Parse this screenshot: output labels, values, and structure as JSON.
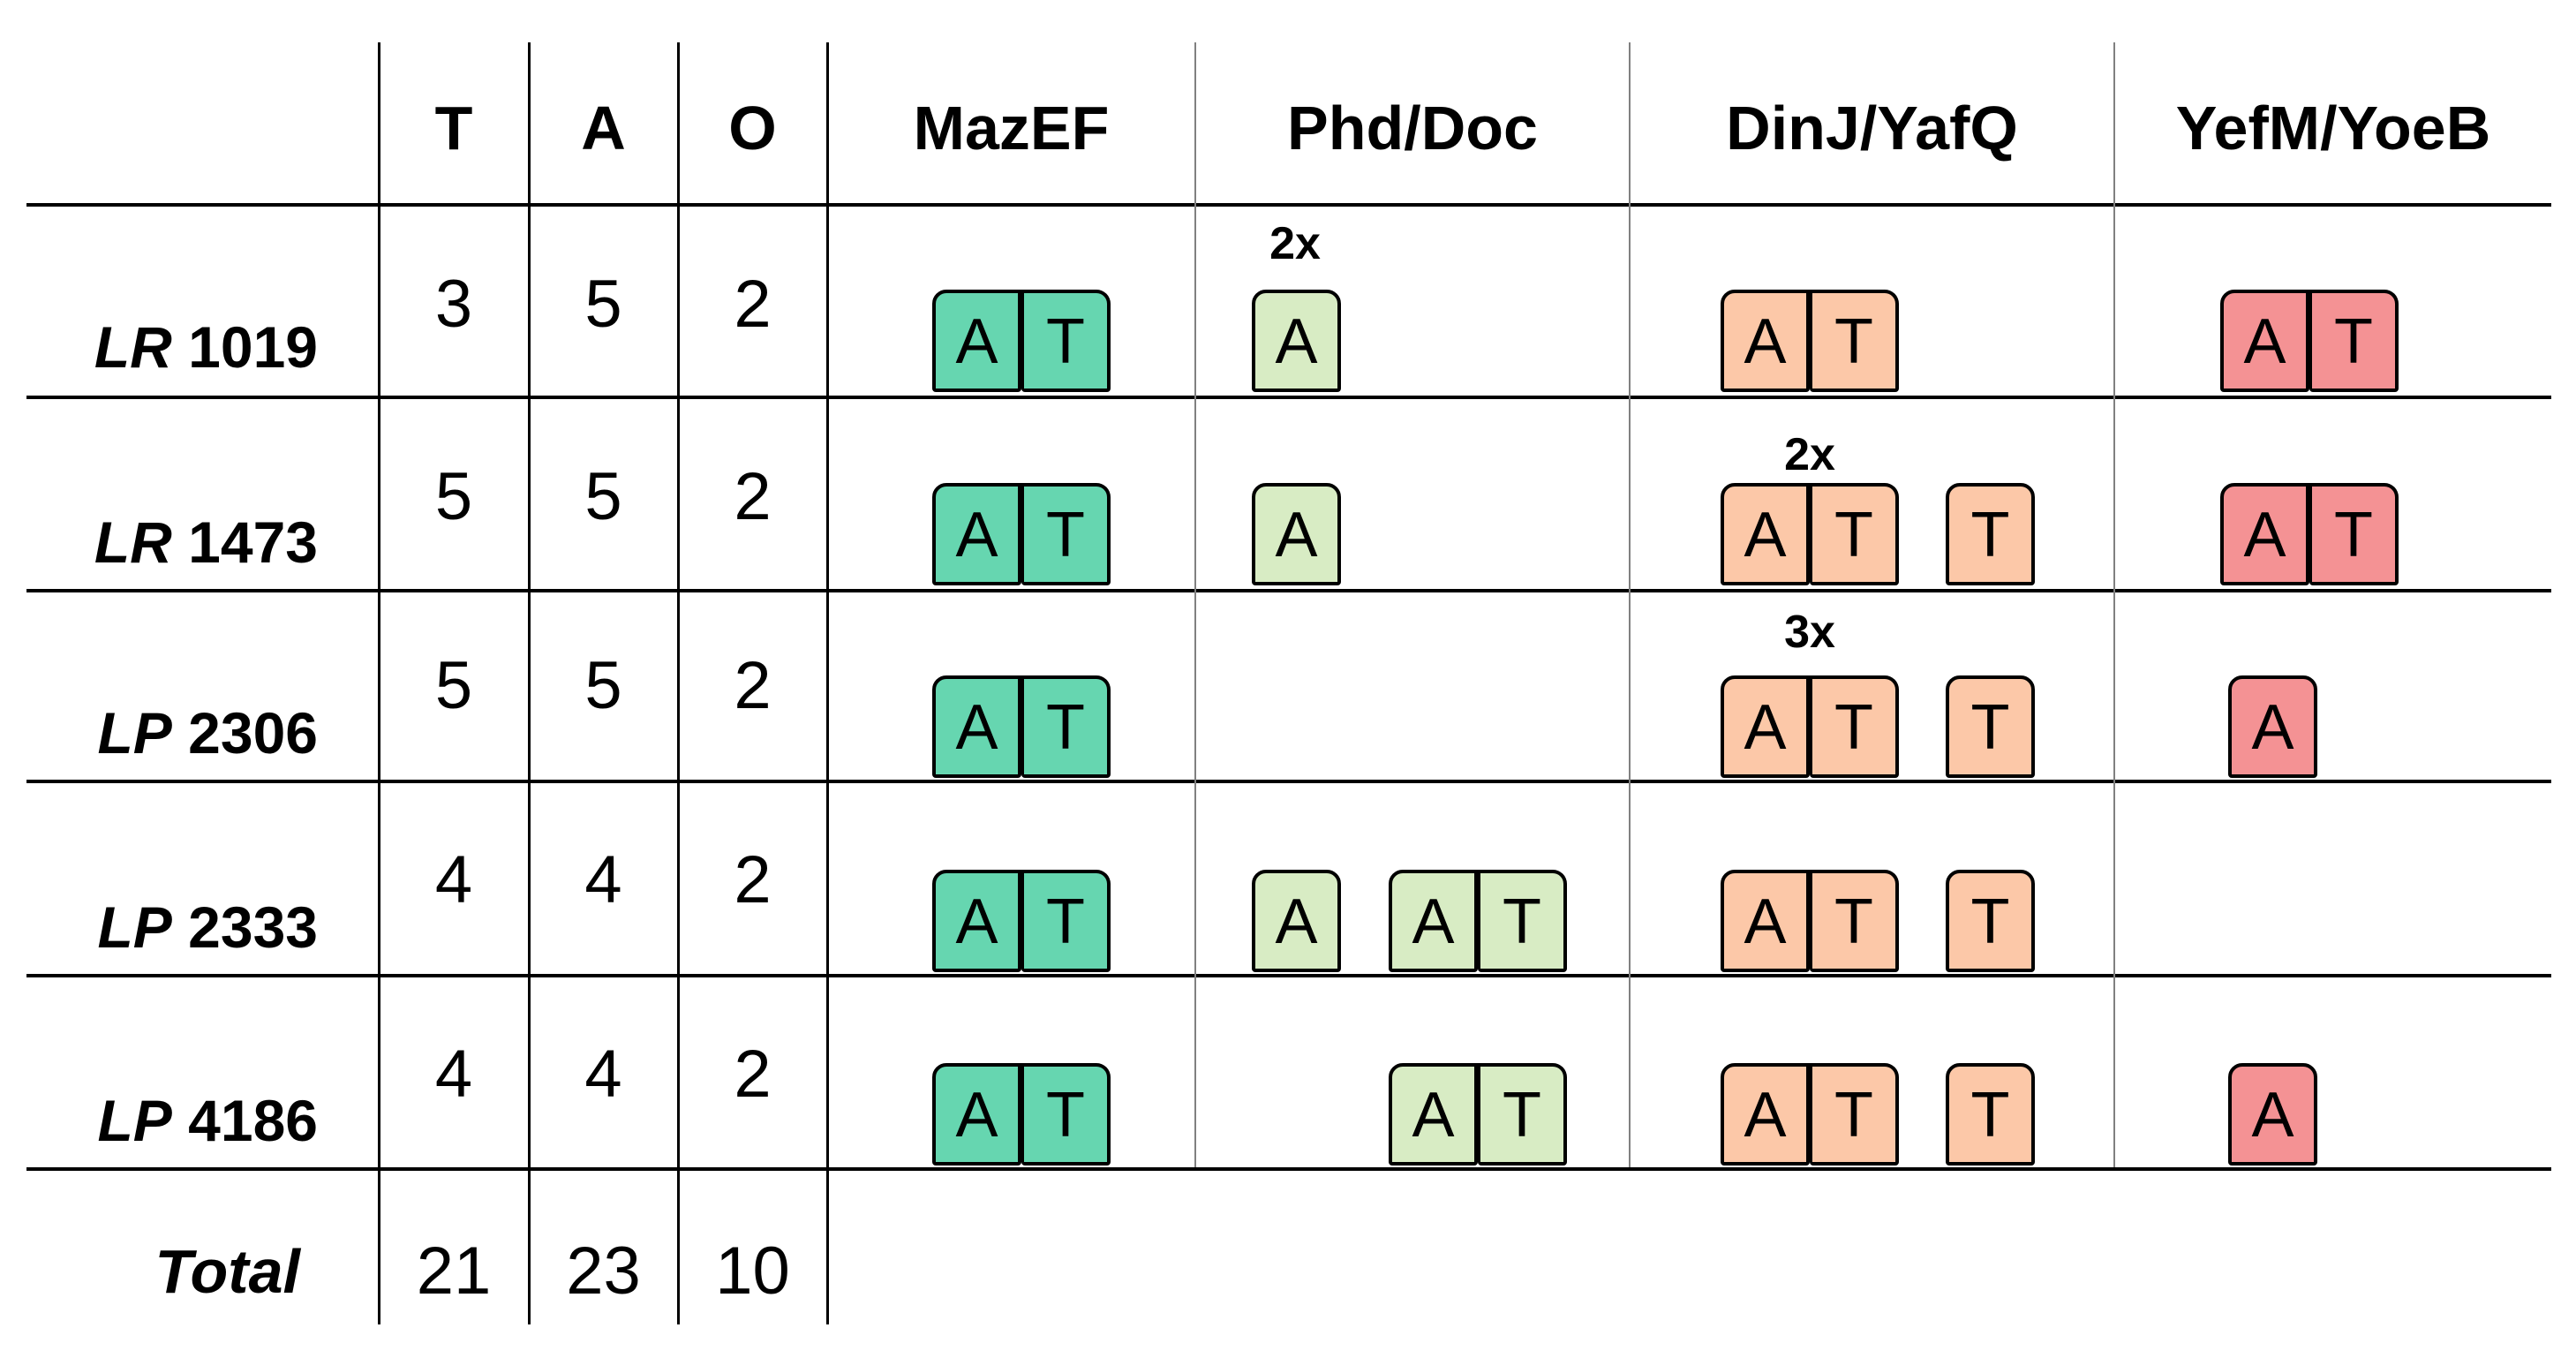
{
  "colors": {
    "mazef": "#66d6b0",
    "phddoc": "#d8ecc4",
    "dinjyafq": "#fcc8a8",
    "yefmyoeb": "#f49294"
  },
  "headers": {
    "t": "T",
    "a": "A",
    "o": "O",
    "mazef": "MazEF",
    "phddoc": "Phd/Doc",
    "dinjyafq": "DinJ/YafQ",
    "yefmyoeb": "YefM/YoeB"
  },
  "rows": [
    {
      "species": "LR",
      "strain": "1019",
      "t": "3",
      "a": "5",
      "o": "2"
    },
    {
      "species": "LR",
      "strain": "1473",
      "t": "5",
      "a": "5",
      "o": "2"
    },
    {
      "species": "LP",
      "strain": "2306",
      "t": "5",
      "a": "5",
      "o": "2"
    },
    {
      "species": "LP",
      "strain": "2333",
      "t": "4",
      "a": "4",
      "o": "2"
    },
    {
      "species": "LP",
      "strain": "4186",
      "t": "4",
      "a": "4",
      "o": "2"
    }
  ],
  "total": {
    "label": "Total",
    "t": "21",
    "a": "23",
    "o": "10"
  },
  "gene_letters": {
    "antitoxin": "A",
    "toxin": "T"
  },
  "multipliers": {
    "lr1019_phddoc": "2x",
    "lr1473_dinjyafq": "2x",
    "lp2306_dinjyafq": "3x"
  }
}
